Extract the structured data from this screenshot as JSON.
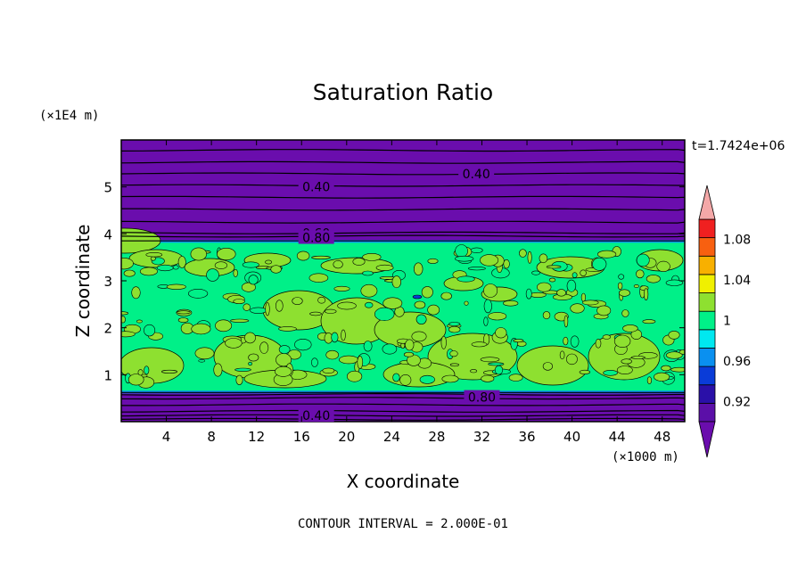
{
  "chart_data": {
    "type": "contour",
    "title": "Saturation Ratio",
    "time_label": "t=1.7424e+06",
    "xlabel": "X coordinate",
    "ylabel": "Z coordinate",
    "x_unit": "(×1000 m)",
    "y_unit": "(×1E4 m)",
    "xlim": [
      0,
      50
    ],
    "ylim": [
      0,
      6
    ],
    "x_ticks": [
      4,
      8,
      12,
      16,
      20,
      24,
      28,
      32,
      36,
      40,
      44,
      48
    ],
    "y_ticks": [
      1,
      2,
      3,
      4,
      5
    ],
    "footer": "CONTOUR INTERVAL = 2.000E-01",
    "colorbar": {
      "levels": [
        0.9,
        0.92,
        0.94,
        0.96,
        0.98,
        1.0,
        1.02,
        1.04,
        1.06,
        1.08,
        1.1
      ],
      "tick_labels": [
        "0.92",
        "0.96",
        "1",
        "1.04",
        "1.08"
      ],
      "tick_values": [
        0.92,
        0.96,
        1.0,
        1.04,
        1.08
      ],
      "colors": [
        "#5b0fa8",
        "#2a10a8",
        "#0a3cd8",
        "#0a90f0",
        "#00e8f0",
        "#00f088",
        "#8ee030",
        "#f0f000",
        "#f8b000",
        "#f86010",
        "#f02020"
      ],
      "over_color": "#f4a8a8",
      "under_color": "#6a0dad"
    },
    "contour_labels": [
      {
        "text": "0.40",
        "x": 31.5,
        "z": 5.28
      },
      {
        "text": "0.40",
        "x": 17.3,
        "z": 5.0
      },
      {
        "text": "0.60",
        "x": 17.3,
        "z": 4.02
      },
      {
        "text": "0.80",
        "x": 17.3,
        "z": 3.92
      },
      {
        "text": "0.80",
        "x": 32.0,
        "z": 0.52
      },
      {
        "text": "0.40",
        "x": 17.3,
        "z": 0.13
      }
    ],
    "fields": {
      "upper_dry_layer": {
        "z_range": [
          3.85,
          6.0
        ],
        "value_range": [
          0.3,
          0.8
        ]
      },
      "cloud_layer": {
        "z_range": [
          0.62,
          3.85
        ],
        "value_range": [
          0.96,
          1.02
        ]
      },
      "lower_dry_layer": {
        "z_range": [
          0.0,
          0.62
        ],
        "value_range": [
          0.3,
          0.85
        ]
      }
    }
  }
}
